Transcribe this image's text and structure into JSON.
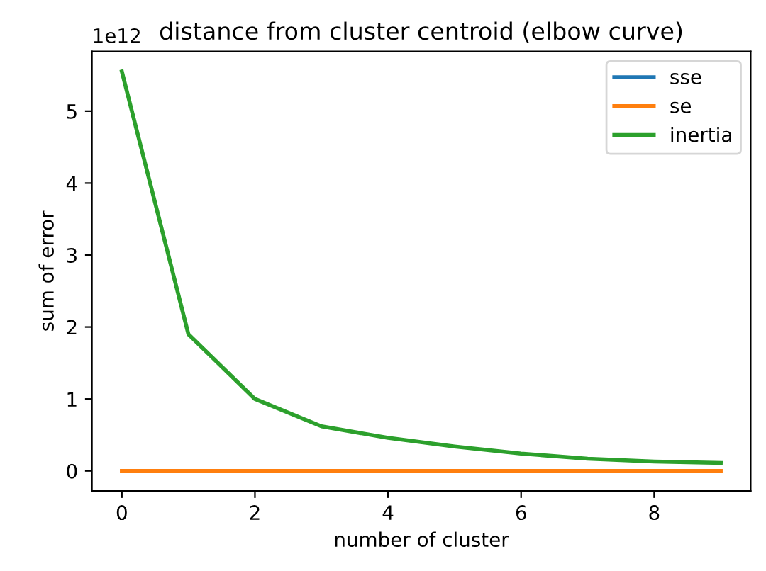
{
  "chart_data": {
    "type": "line",
    "title": "distance from cluster centroid (elbow curve)",
    "xlabel": "number of cluster",
    "ylabel": "sum of error",
    "annotations": [
      "1e12"
    ],
    "x": [
      0,
      1,
      2,
      3,
      4,
      5,
      6,
      7,
      8,
      9
    ],
    "series": [
      {
        "name": "sse",
        "color": "#1f77b4",
        "values": [
          null,
          null,
          null,
          null,
          null,
          null,
          null,
          null,
          null,
          null
        ]
      },
      {
        "name": "se",
        "color": "#ff7f0e",
        "values": [
          0,
          0,
          0,
          0,
          0,
          0,
          0,
          0,
          0,
          0
        ]
      },
      {
        "name": "inertia",
        "color": "#2ca02c",
        "values": [
          5.55,
          1.9,
          1.0,
          0.62,
          0.46,
          0.34,
          0.24,
          0.17,
          0.13,
          0.11
        ]
      }
    ],
    "xlim": [
      -0.45,
      9.45
    ],
    "ylim": [
      -0.28,
      5.83
    ],
    "xticks": [
      0,
      2,
      4,
      6,
      8
    ],
    "yticks": [
      0,
      1,
      2,
      3,
      4,
      5
    ],
    "grid": false,
    "legend": "top right",
    "marker": "none",
    "line_style": "solid"
  }
}
